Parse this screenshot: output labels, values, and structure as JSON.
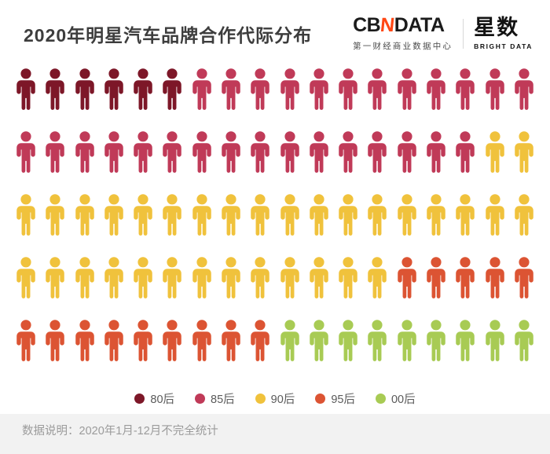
{
  "header": {
    "title": "2020年明星汽车品牌合作代际分布",
    "logo": {
      "cb": "CB",
      "n": "N",
      "data": "DATA",
      "n_color": "#ff4714",
      "subtitle": "第一财经商业数据中心",
      "brand_right": "星数",
      "brand_right_sub": "BRIGHT DATA"
    }
  },
  "chart_data": {
    "type": "pictogram",
    "title": "2020年明星汽车品牌合作代际分布",
    "rows": 5,
    "cols": 18,
    "total_units": 90,
    "unit": "person-icon",
    "fill_order": "left-to-right, top-to-bottom",
    "series": [
      {
        "name": "80后",
        "count": 6,
        "color": "#7d1728"
      },
      {
        "name": "85后",
        "count": 28,
        "color": "#c03a58"
      },
      {
        "name": "90后",
        "count": 33,
        "color": "#f0c23c"
      },
      {
        "name": "95后",
        "count": 14,
        "color": "#dc5433"
      },
      {
        "name": "00后",
        "count": 9,
        "color": "#a8cb54"
      }
    ],
    "row_breakdown": [
      {
        "row": 1,
        "segments": [
          {
            "name": "80后",
            "count": 6
          },
          {
            "name": "85后",
            "count": 12
          }
        ]
      },
      {
        "row": 2,
        "segments": [
          {
            "name": "85后",
            "count": 16
          },
          {
            "name": "90后",
            "count": 2
          }
        ]
      },
      {
        "row": 3,
        "segments": [
          {
            "name": "90后",
            "count": 18
          }
        ]
      },
      {
        "row": 4,
        "segments": [
          {
            "name": "90后",
            "count": 13
          },
          {
            "name": "95后",
            "count": 5
          }
        ]
      },
      {
        "row": 5,
        "segments": [
          {
            "name": "95后",
            "count": 9
          },
          {
            "name": "00后",
            "count": 9
          }
        ]
      }
    ],
    "legend_position": "bottom-center"
  },
  "legend": {
    "items": [
      {
        "label": "80后",
        "color": "#7d1728"
      },
      {
        "label": "85后",
        "color": "#c03a58"
      },
      {
        "label": "90后",
        "color": "#f0c23c"
      },
      {
        "label": "95后",
        "color": "#dc5433"
      },
      {
        "label": "00后",
        "color": "#a8cb54"
      }
    ]
  },
  "footer": {
    "note": "数据说明：2020年1月-12月不完全统计"
  }
}
